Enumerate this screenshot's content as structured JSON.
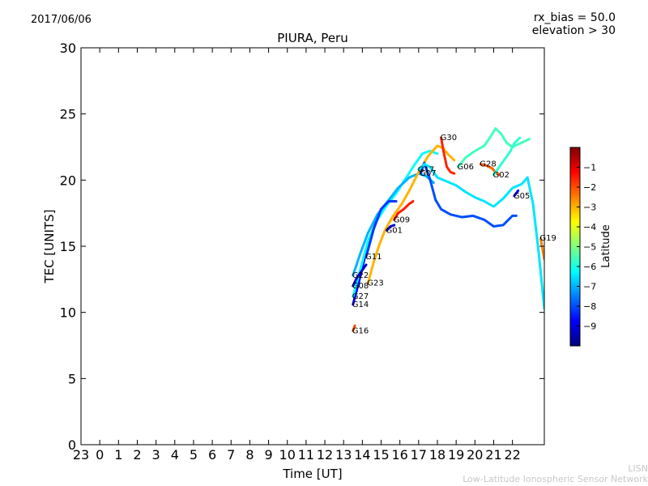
{
  "header": {
    "date": "2017/06/06",
    "rx_bias": "rx_bias = 50.0",
    "elevation": "elevation > 30"
  },
  "footer": {
    "line1": "LISN",
    "line2": "Low-Latitude Ionospheric Sensor Network"
  },
  "chart_data": {
    "type": "line",
    "title": "PIURA, Peru",
    "xlabel": "Time [UT]",
    "ylabel": "TEC [UNITS]",
    "x_ticks": [
      "23",
      "0",
      "1",
      "2",
      "3",
      "4",
      "5",
      "6",
      "7",
      "8",
      "9",
      "10",
      "11",
      "12",
      "13",
      "14",
      "15",
      "16",
      "17",
      "18",
      "19",
      "20",
      "21",
      "22"
    ],
    "xlim": [
      -1,
      23.7
    ],
    "ylim": [
      0,
      30
    ],
    "y_ticks": [
      0,
      5,
      10,
      15,
      20,
      25,
      30
    ],
    "colorbar": {
      "label": "Latitude",
      "min": -10,
      "max": 0,
      "ticks": [
        -1,
        -2,
        -3,
        -4,
        -5,
        -6,
        -7,
        -8,
        -9
      ],
      "colors": [
        "#00007f",
        "#0000ff",
        "#007fff",
        "#00ffff",
        "#7fff7f",
        "#ffff00",
        "#ff7f00",
        "#ff0000",
        "#7f0000"
      ]
    },
    "series": [
      {
        "name": "G16",
        "lat": -2.0,
        "x": [
          13.5,
          13.6
        ],
        "y": [
          8.6,
          9.0
        ]
      },
      {
        "name": "G14",
        "lat": -8.8,
        "x": [
          13.5,
          13.8,
          14.1,
          14.5,
          15.0,
          15.5
        ],
        "y": [
          10.6,
          12.2,
          14.0,
          16.0,
          17.8,
          18.6
        ]
      },
      {
        "name": "G27",
        "lat": -6.2,
        "x": [
          13.5,
          13.9,
          14.3,
          14.8,
          15.3,
          15.8,
          16.3,
          16.8,
          17.2,
          17.6,
          18.0
        ],
        "y": [
          11.2,
          13.3,
          15.4,
          17.0,
          18.1,
          19.0,
          20.1,
          21.2,
          22.0,
          22.2,
          22.0
        ]
      },
      {
        "name": "G22",
        "lat": -7.0,
        "x": [
          13.5,
          13.9,
          14.3,
          14.8,
          15.3,
          15.9,
          16.5,
          17.0,
          17.4,
          17.8
        ],
        "y": [
          12.8,
          14.5,
          16.0,
          17.4,
          18.3,
          19.4,
          20.2,
          20.5,
          20.3,
          19.8
        ]
      },
      {
        "name": "G08",
        "lat": -9.2,
        "x": [
          13.5,
          13.7,
          14.0,
          14.2
        ],
        "y": [
          12.0,
          12.6,
          13.2,
          13.6
        ]
      },
      {
        "name": "G11",
        "lat": -8.2,
        "x": [
          14.2,
          14.6,
          15.0,
          15.4,
          15.8
        ],
        "y": [
          14.2,
          16.3,
          17.8,
          18.4,
          18.4
        ]
      },
      {
        "name": "G23",
        "lat": -3.0,
        "x": [
          14.3,
          14.6,
          14.9,
          15.2,
          15.6,
          16.1,
          16.5,
          17.0,
          17.5,
          18.0,
          18.3,
          18.6,
          18.9
        ],
        "y": [
          12.2,
          13.8,
          15.1,
          16.2,
          17.2,
          18.2,
          19.2,
          20.6,
          21.8,
          22.6,
          22.4,
          21.9,
          21.5
        ]
      },
      {
        "name": "G01",
        "lat": -9.0,
        "x": [
          15.3,
          15.5,
          15.7
        ],
        "y": [
          16.2,
          16.5,
          16.6
        ]
      },
      {
        "name": "G09",
        "lat": -1.5,
        "x": [
          15.7,
          15.9,
          16.2,
          16.5,
          16.7
        ],
        "y": [
          17.0,
          17.5,
          17.8,
          18.2,
          18.4
        ]
      },
      {
        "name": "G07",
        "lat": -8.0,
        "x": [
          17.1,
          17.3,
          17.6,
          17.9,
          18.2,
          18.7,
          19.3,
          19.9,
          20.5,
          21.0,
          21.5,
          22.0,
          22.2
        ],
        "y": [
          20.5,
          21.3,
          20.1,
          18.5,
          17.8,
          17.4,
          17.2,
          17.3,
          17.0,
          16.5,
          16.6,
          17.3,
          17.3
        ]
      },
      {
        "name": "G17",
        "lat": -6.5,
        "x": [
          17.0,
          17.3,
          17.6,
          18.0,
          18.5,
          19.0,
          19.5,
          20.0,
          20.5,
          21.0,
          21.5,
          22.0,
          22.5,
          22.8,
          23.1,
          23.4,
          23.7
        ],
        "y": [
          20.8,
          21.2,
          21.0,
          20.2,
          19.9,
          19.6,
          19.1,
          18.7,
          18.4,
          18.0,
          18.6,
          19.4,
          19.7,
          20.2,
          18.2,
          14.5,
          10.3
        ]
      },
      {
        "name": "G30",
        "lat": -1.6,
        "x": [
          18.2,
          18.35,
          18.5,
          18.7,
          18.9
        ],
        "y": [
          23.2,
          22.0,
          21.0,
          20.6,
          20.5
        ]
      },
      {
        "name": "G06",
        "lat": -5.6,
        "x": [
          19.1,
          19.5,
          20.0,
          20.5,
          20.8,
          21.1,
          21.4,
          21.7,
          22.0,
          22.3,
          22.6,
          22.9
        ],
        "y": [
          21.0,
          21.7,
          22.2,
          22.6,
          23.2,
          23.9,
          23.5,
          22.8,
          22.5,
          22.7,
          22.9,
          23.1
        ]
      },
      {
        "name": "G28",
        "lat": -2.2,
        "x": [
          20.3,
          20.6,
          20.9,
          21.1,
          21.3
        ],
        "y": [
          21.2,
          21.1,
          20.9,
          20.6,
          20.4
        ]
      },
      {
        "name": "G02",
        "lat": -5.8,
        "x": [
          21.0,
          21.3,
          21.6,
          21.9,
          22.1,
          22.4
        ],
        "y": [
          20.4,
          21.0,
          21.6,
          22.2,
          22.8,
          23.2
        ]
      },
      {
        "name": "G05",
        "lat": -8.9,
        "x": [
          22.1,
          22.3
        ],
        "y": [
          18.8,
          19.2
        ]
      },
      {
        "name": "G19",
        "lat": -2.5,
        "x": [
          23.5,
          23.6,
          23.7
        ],
        "y": [
          15.6,
          14.8,
          14.0
        ]
      }
    ]
  }
}
